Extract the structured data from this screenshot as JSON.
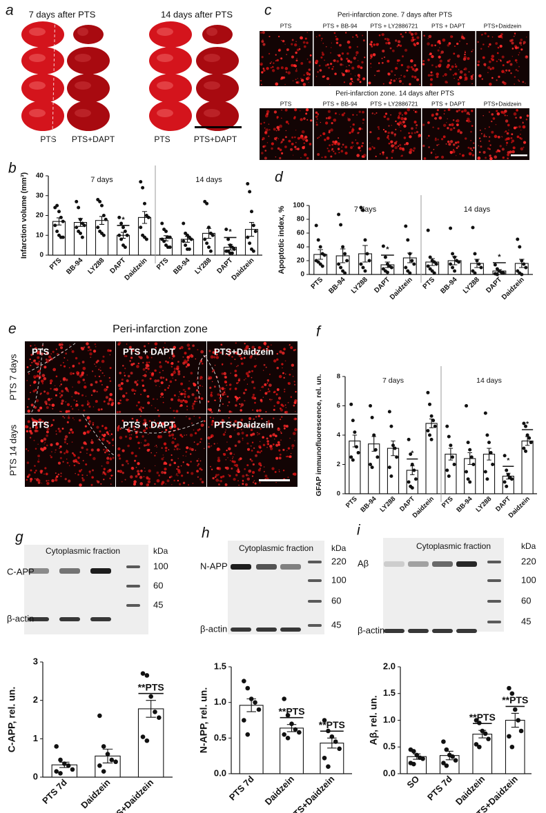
{
  "panel_a": {
    "letter": "a",
    "headers": [
      "7 days after PTS",
      "14 days after PTS"
    ],
    "labels": [
      "PTS",
      "PTS+DAPT",
      "PTS",
      "PTS+DAPT"
    ]
  },
  "panel_c": {
    "letter": "c",
    "rows": [
      {
        "title": "Peri-infarction zone. 7 days after PTS",
        "labels": [
          "PTS",
          "PTS + BB-94",
          "PTS + LY2886721",
          "PTS + DAPT",
          "PTS+Daidzein"
        ]
      },
      {
        "title": "Peri-infarction zone. 14 days after PTS",
        "labels": [
          "PTS",
          "PTS + BB-94",
          "PTS + LY2886721",
          "PTS + DAPT",
          "PTS+Daidzein"
        ]
      }
    ]
  },
  "panel_e": {
    "letter": "e",
    "title": "Peri-infarction zone",
    "rows": [
      {
        "label": "PTS 7 days",
        "cells": [
          "PTS",
          "PTS + DAPT",
          "PTS+Daidzein"
        ]
      },
      {
        "label": "PTS 14 days",
        "cells": [
          "PTS",
          "PTS + DAPT",
          "PTS+Daidzein"
        ]
      }
    ]
  },
  "blots": [
    {
      "letter": "g",
      "title": "Cytoplasmic fraction",
      "unit": "kDa",
      "markers": [
        100,
        60,
        45
      ],
      "bands": [
        "C-APP",
        "β-actin"
      ]
    },
    {
      "letter": "h",
      "title": "Cytoplasmic fraction",
      "unit": "kDa",
      "markers": [
        220,
        100,
        60,
        45
      ],
      "bands": [
        "N-APP",
        "β-actin"
      ]
    },
    {
      "letter": "i",
      "title": "Cytoplasmic fraction",
      "unit": "kDa",
      "markers": [
        220,
        100,
        60,
        45
      ],
      "bands": [
        "Aβ",
        "β-actin"
      ]
    }
  ],
  "chart_data": [
    {
      "type": "bar",
      "panel": "b",
      "ylabel": "Infarction volume (mm³)",
      "groups": [
        "7 days",
        "14 days"
      ],
      "categories": [
        "PTS",
        "BB-94",
        "LY288",
        "DAPT",
        "Daidzein",
        "PTS",
        "BB-94",
        "LY288",
        "DAPT",
        "Daidzein"
      ],
      "values": [
        17,
        16.5,
        17.5,
        10,
        19,
        8.5,
        8,
        11,
        4,
        13
      ],
      "errors": [
        1.8,
        2,
        2,
        1.5,
        3,
        1.3,
        1.5,
        2.5,
        1.4,
        3.5
      ],
      "points": [
        [
          24,
          25,
          22,
          19,
          17,
          15,
          12,
          10,
          9,
          9
        ],
        [
          27,
          24,
          18,
          16,
          15,
          14,
          12,
          11,
          9
        ],
        [
          28,
          27,
          25,
          20,
          18,
          14,
          12,
          11,
          10
        ],
        [
          19,
          16,
          14,
          12,
          10,
          10,
          8,
          5,
          4
        ],
        [
          37,
          34,
          26,
          20,
          19,
          14,
          10,
          9,
          8
        ],
        [
          16,
          13,
          12,
          9,
          9,
          8,
          7,
          5,
          4,
          4
        ],
        [
          16,
          11,
          10,
          9,
          8,
          7,
          5,
          3,
          3
        ],
        [
          27,
          26,
          14,
          11,
          10,
          8,
          6,
          4,
          2
        ],
        [
          13,
          8,
          5,
          4,
          3,
          2,
          2,
          1,
          1
        ],
        [
          36,
          32,
          22,
          15,
          12,
          9,
          6,
          3,
          2
        ]
      ],
      "significance": [
        null,
        null,
        null,
        "*",
        null,
        null,
        null,
        null,
        "*",
        null
      ],
      "ylim": [
        0,
        40
      ],
      "yticks": [
        0,
        10,
        20,
        30,
        40
      ],
      "color": "#ffffff",
      "point_color": "#111111"
    },
    {
      "type": "bar",
      "panel": "d",
      "ylabel": "Apoptotic index, %",
      "groups": [
        "7 days",
        "14 days"
      ],
      "categories": [
        "PTS",
        "BB-94",
        "LY288",
        "DAPT",
        "Daidzein",
        "PTS",
        "BB-94",
        "LY288",
        "DAPT",
        "Daidzein"
      ],
      "values": [
        29,
        27,
        30,
        14,
        24,
        18,
        20,
        16,
        5,
        16
      ],
      "errors": [
        7,
        10,
        12,
        4,
        7,
        5,
        6,
        6,
        2,
        6
      ],
      "points": [
        [
          71,
          50,
          40,
          30,
          28,
          20,
          18,
          15,
          12
        ],
        [
          87,
          72,
          40,
          30,
          20,
          15,
          10,
          5,
          2
        ],
        [
          97,
          93,
          50,
          30,
          20,
          15,
          10,
          5
        ],
        [
          41,
          25,
          15,
          12,
          10,
          8,
          5,
          3
        ],
        [
          70,
          50,
          30,
          20,
          15,
          10,
          5,
          2
        ],
        [
          64,
          25,
          20,
          18,
          15,
          12,
          8,
          5,
          2
        ],
        [
          67,
          30,
          25,
          20,
          18,
          15,
          10,
          5
        ],
        [
          68,
          30,
          20,
          15,
          10,
          5,
          2
        ],
        [
          14,
          8,
          5,
          3,
          2,
          1,
          0
        ],
        [
          51,
          40,
          20,
          15,
          10,
          5,
          2,
          0
        ]
      ],
      "significance": [
        null,
        null,
        null,
        "*",
        null,
        null,
        null,
        null,
        "*",
        null
      ],
      "ylim": [
        0,
        100
      ],
      "yticks": [
        0,
        20,
        40,
        60,
        80,
        100
      ],
      "color": "#ffffff",
      "point_color": "#111111"
    },
    {
      "type": "bar",
      "panel": "f",
      "ylabel": "GFAP immunofluorescence, rel. un.",
      "groups": [
        "7 days",
        "14 days"
      ],
      "categories": [
        "PTS",
        "BB-94",
        "LY288",
        "DAPT",
        "Daidzein",
        "PTS",
        "BB-94",
        "LY288",
        "DAPT",
        "Daidzein"
      ],
      "values": [
        3.6,
        3.4,
        3.1,
        1.6,
        4.8,
        2.7,
        2.4,
        2.7,
        1.2,
        3.6
      ],
      "errors": [
        0.4,
        0.5,
        0.5,
        0.3,
        0.3,
        0.4,
        0.4,
        0.4,
        0.2,
        0.3
      ],
      "points": [
        [
          6.1,
          5,
          4.2,
          3.2,
          2.8,
          2.5,
          2.3
        ],
        [
          6,
          5.2,
          4,
          3,
          2.5,
          2,
          1.8
        ],
        [
          5.6,
          4.6,
          3.3,
          3.1,
          2.5,
          1.8,
          1.2
        ],
        [
          3.7,
          2.7,
          2,
          1.6,
          1,
          0.8,
          0.5,
          0.4
        ],
        [
          6.9,
          6.1,
          5.3,
          5,
          4.6,
          4.3,
          4,
          3.7
        ],
        [
          4.6,
          3.9,
          3.3,
          2.5,
          2,
          1.6,
          1.2
        ],
        [
          6,
          3.5,
          3,
          2.5,
          2,
          1.5,
          1,
          0.8
        ],
        [
          5.5,
          4,
          3.5,
          2.8,
          2,
          1.5,
          1
        ],
        [
          2.6,
          1.6,
          1.3,
          1.1,
          1,
          0.8,
          0.5
        ],
        [
          4.8,
          4.6,
          4,
          3.8,
          3.5,
          3.1,
          2.9
        ]
      ],
      "significance": [
        null,
        null,
        null,
        "*",
        null,
        null,
        null,
        null,
        "*",
        "*"
      ],
      "ylim": [
        0,
        8
      ],
      "yticks": [
        0,
        2,
        4,
        6,
        8
      ],
      "color": "#ffffff",
      "point_color": "#111111"
    },
    {
      "type": "bar",
      "ylabel": "C-APP, rel. un.",
      "categories": [
        "PTS 7d",
        "Daidzein",
        "PTS+Daidzein"
      ],
      "values": [
        0.32,
        0.55,
        1.78
      ],
      "errors": [
        0.07,
        0.18,
        0.22
      ],
      "points": [
        [
          0.8,
          0.45,
          0.35,
          0.3,
          0.2,
          0.15,
          0.1
        ],
        [
          1.6,
          0.8,
          0.6,
          0.45,
          0.4,
          0.3,
          0.15
        ],
        [
          2.7,
          2.65,
          2.1,
          1.7,
          1.55,
          1.05,
          0.95
        ]
      ],
      "significance": [
        null,
        null,
        "**PTS"
      ],
      "ylim": [
        0,
        3
      ],
      "yticks": [
        0,
        1,
        2,
        3
      ],
      "color": "#ffffff",
      "point_color": "#111111"
    },
    {
      "type": "bar",
      "ylabel": "N-APP, rel. un.",
      "categories": [
        "PTS 7d",
        "Daidzein",
        "PTS+Daidzein"
      ],
      "values": [
        0.96,
        0.64,
        0.43
      ],
      "errors": [
        0.09,
        0.05,
        0.07
      ],
      "points": [
        [
          1.3,
          1.2,
          1.05,
          1.0,
          0.9,
          0.75,
          0.55
        ],
        [
          1.05,
          0.82,
          0.7,
          0.62,
          0.58,
          0.55,
          0.5
        ],
        [
          0.75,
          0.6,
          0.52,
          0.45,
          0.35,
          0.22,
          0.1
        ]
      ],
      "significance": [
        null,
        "**PTS",
        "**PTS"
      ],
      "ylim": [
        0,
        1.5
      ],
      "yticks": [
        {
          "value": 0,
          "label": "0.0"
        },
        0.5,
        {
          "value": 1,
          "label": "1.0"
        },
        1.5
      ],
      "color": "#ffffff",
      "point_color": "#111111"
    },
    {
      "type": "bar",
      "ylabel": "Aβ, rel. un.",
      "categories": [
        "SO",
        "PTS 7d",
        "Daidzein",
        "PTS+Daidzein"
      ],
      "values": [
        0.32,
        0.34,
        0.74,
        1.0
      ],
      "errors": [
        0.05,
        0.08,
        0.07,
        0.13
      ],
      "points": [
        [
          0.45,
          0.42,
          0.35,
          0.3,
          0.28,
          0.2,
          0.18
        ],
        [
          0.6,
          0.45,
          0.35,
          0.32,
          0.25,
          0.2,
          0.15
        ],
        [
          1.0,
          0.95,
          0.8,
          0.75,
          0.65,
          0.55,
          0.5
        ],
        [
          1.6,
          1.5,
          1.2,
          1.0,
          0.8,
          0.7,
          0.5
        ]
      ],
      "significance": [
        null,
        null,
        "**PTS",
        "**PTS"
      ],
      "ylim": [
        0,
        2
      ],
      "yticks": [
        {
          "value": 0,
          "label": "0.0"
        },
        0.5,
        {
          "value": 1,
          "label": "1.0"
        },
        1.5,
        {
          "value": 2,
          "label": "2.0"
        }
      ],
      "color": "#ffffff",
      "point_color": "#111111"
    }
  ]
}
